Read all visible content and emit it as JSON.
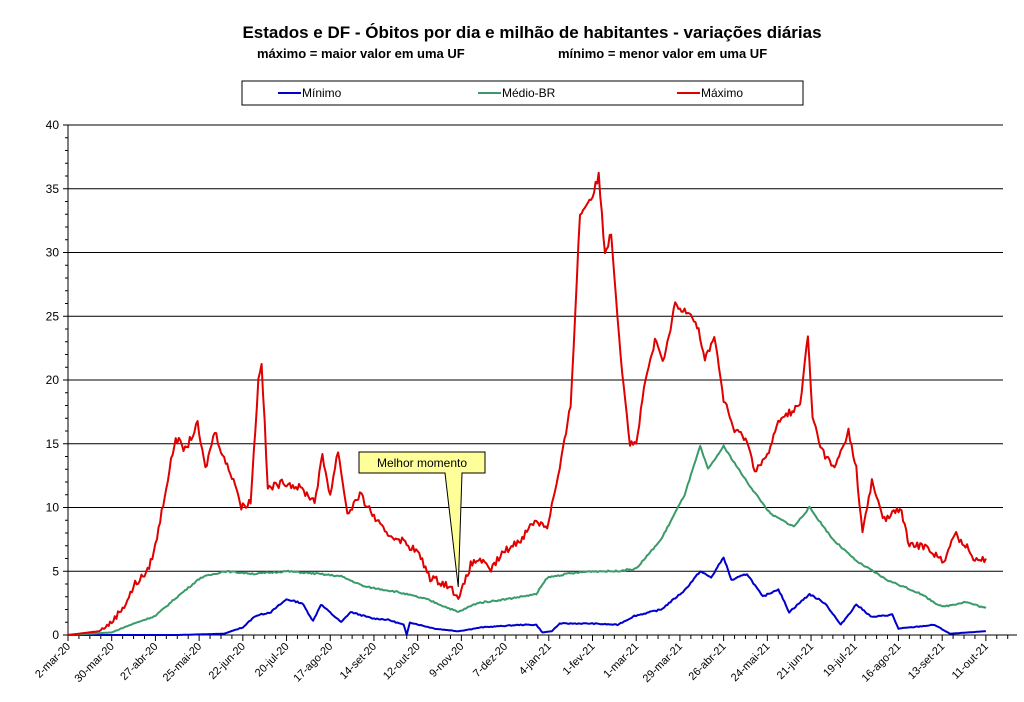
{
  "chart_data": {
    "type": "line",
    "title": "Estados e DF - Óbitos por dia e milhão de habitantes - variações diárias",
    "subtitle_left": "máximo = maior valor em uma UF",
    "subtitle_right": "mínimo = menor valor em uma UF",
    "x_unit": "days since 2-mar-20",
    "ylim": [
      0,
      40
    ],
    "yticks": [
      0,
      5,
      10,
      15,
      20,
      25,
      30,
      35,
      40
    ],
    "xtick_labels": [
      "2-mar-20",
      "30-mar-20",
      "27-abr-20",
      "25-mai-20",
      "22-jun-20",
      "20-jul-20",
      "17-ago-20",
      "14-set-20",
      "12-out-20",
      "9-nov-20",
      "7-dez-20",
      "4-jan-21",
      "1-fev-21",
      "1-mar-21",
      "29-mar-21",
      "26-abr-21",
      "24-mai-21",
      "21-jun-21",
      "19-jul-21",
      "16-ago-21",
      "13-set-21",
      "11-out-21"
    ],
    "xtick_step_days": 28,
    "grid": true,
    "legend_placement": "top",
    "annotation": {
      "text": "Melhor momento",
      "day": 250,
      "value": 4
    },
    "series": [
      {
        "name": "Mínimo",
        "color": "#0000cc",
        "points": [
          [
            0,
            0
          ],
          [
            70,
            0
          ],
          [
            100,
            0.1
          ],
          [
            112,
            0.6
          ],
          [
            120,
            1.5
          ],
          [
            130,
            1.8
          ],
          [
            140,
            2.8
          ],
          [
            150,
            2.5
          ],
          [
            157,
            1.1
          ],
          [
            162,
            2.4
          ],
          [
            175,
            1.0
          ],
          [
            181,
            1.8
          ],
          [
            195,
            1.3
          ],
          [
            205,
            1.2
          ],
          [
            215,
            0.8
          ],
          [
            217,
            0
          ],
          [
            219,
            1.0
          ],
          [
            225,
            0.8
          ],
          [
            235,
            0.5
          ],
          [
            250,
            0.3
          ],
          [
            265,
            0.6
          ],
          [
            290,
            0.8
          ],
          [
            300,
            0.8
          ],
          [
            304,
            0.2
          ],
          [
            310,
            0.3
          ],
          [
            315,
            0.9
          ],
          [
            335,
            0.9
          ],
          [
            352,
            0.8
          ],
          [
            363,
            1.5
          ],
          [
            380,
            2.0
          ],
          [
            395,
            3.5
          ],
          [
            405,
            5.0
          ],
          [
            412,
            4.5
          ],
          [
            420,
            6.1
          ],
          [
            425,
            4.3
          ],
          [
            435,
            4.8
          ],
          [
            445,
            3.0
          ],
          [
            455,
            3.6
          ],
          [
            462,
            1.8
          ],
          [
            475,
            3.2
          ],
          [
            485,
            2.5
          ],
          [
            495,
            0.8
          ],
          [
            505,
            2.4
          ],
          [
            515,
            1.4
          ],
          [
            528,
            1.6
          ],
          [
            532,
            0.5
          ],
          [
            548,
            0.7
          ],
          [
            555,
            0.8
          ],
          [
            565,
            0.1
          ],
          [
            588,
            0.3
          ]
        ]
      },
      {
        "name": "Médio-BR",
        "color": "#3a9a6a",
        "points": [
          [
            0,
            0
          ],
          [
            28,
            0.2
          ],
          [
            40,
            0.8
          ],
          [
            56,
            1.5
          ],
          [
            70,
            3.0
          ],
          [
            85,
            4.5
          ],
          [
            100,
            5.0
          ],
          [
            120,
            4.8
          ],
          [
            140,
            5.0
          ],
          [
            160,
            4.8
          ],
          [
            175,
            4.6
          ],
          [
            190,
            3.8
          ],
          [
            210,
            3.4
          ],
          [
            230,
            2.8
          ],
          [
            250,
            1.8
          ],
          [
            262,
            2.5
          ],
          [
            280,
            2.8
          ],
          [
            300,
            3.2
          ],
          [
            307,
            4.5
          ],
          [
            320,
            4.8
          ],
          [
            335,
            5.0
          ],
          [
            350,
            5.0
          ],
          [
            364,
            5.2
          ],
          [
            380,
            7.5
          ],
          [
            395,
            11.0
          ],
          [
            405,
            14.8
          ],
          [
            410,
            13.0
          ],
          [
            420,
            14.8
          ],
          [
            435,
            12.0
          ],
          [
            450,
            9.5
          ],
          [
            465,
            8.5
          ],
          [
            475,
            10.0
          ],
          [
            490,
            7.5
          ],
          [
            505,
            5.8
          ],
          [
            525,
            4.3
          ],
          [
            545,
            3.3
          ],
          [
            560,
            2.2
          ],
          [
            575,
            2.6
          ],
          [
            588,
            2.1
          ]
        ]
      },
      {
        "name": "Máximo",
        "color": "#e00000",
        "points": [
          [
            0,
            0
          ],
          [
            20,
            0.3
          ],
          [
            28,
            1
          ],
          [
            37,
            2.5
          ],
          [
            43,
            4
          ],
          [
            51,
            5
          ],
          [
            56,
            7
          ],
          [
            62,
            11
          ],
          [
            69,
            15.5
          ],
          [
            75,
            14.5
          ],
          [
            83,
            16.5
          ],
          [
            88,
            13
          ],
          [
            94,
            16
          ],
          [
            101,
            13.5
          ],
          [
            107,
            12
          ],
          [
            111,
            10
          ],
          [
            117,
            10.5
          ],
          [
            122,
            20
          ],
          [
            124,
            21.5
          ],
          [
            128,
            11.5
          ],
          [
            139,
            12
          ],
          [
            149,
            11.5
          ],
          [
            158,
            10.5
          ],
          [
            163,
            14
          ],
          [
            168,
            11
          ],
          [
            173,
            14.5
          ],
          [
            179,
            9.5
          ],
          [
            187,
            11
          ],
          [
            195,
            9.5
          ],
          [
            203,
            8
          ],
          [
            213,
            7.5
          ],
          [
            224,
            6.5
          ],
          [
            232,
            4.5
          ],
          [
            242,
            4
          ],
          [
            251,
            3
          ],
          [
            258,
            5.5
          ],
          [
            264,
            6
          ],
          [
            270,
            5
          ],
          [
            279,
            6.5
          ],
          [
            290,
            7.5
          ],
          [
            299,
            9
          ],
          [
            307,
            8.5
          ],
          [
            315,
            13
          ],
          [
            322,
            18
          ],
          [
            328,
            33
          ],
          [
            336,
            34.5
          ],
          [
            340,
            36
          ],
          [
            344,
            30
          ],
          [
            348,
            31.5
          ],
          [
            354,
            22
          ],
          [
            360,
            15
          ],
          [
            364,
            15
          ],
          [
            370,
            20
          ],
          [
            376,
            23
          ],
          [
            382,
            21.5
          ],
          [
            389,
            26
          ],
          [
            392,
            25.5
          ],
          [
            398,
            25.5
          ],
          [
            404,
            24
          ],
          [
            408,
            21.5
          ],
          [
            414,
            23.5
          ],
          [
            420,
            18.5
          ],
          [
            427,
            16
          ],
          [
            434,
            15.5
          ],
          [
            440,
            13
          ],
          [
            448,
            14
          ],
          [
            456,
            17
          ],
          [
            463,
            17.5
          ],
          [
            469,
            18
          ],
          [
            474,
            23.5
          ],
          [
            477,
            17
          ],
          [
            483,
            14.5
          ],
          [
            491,
            13
          ],
          [
            500,
            16
          ],
          [
            505,
            13
          ],
          [
            509,
            8
          ],
          [
            515,
            12
          ],
          [
            523,
            9
          ],
          [
            533,
            10
          ],
          [
            539,
            7
          ],
          [
            549,
            7
          ],
          [
            559,
            6
          ],
          [
            561,
            5.5
          ],
          [
            568,
            8
          ],
          [
            575,
            7
          ],
          [
            581,
            6
          ],
          [
            588,
            6
          ]
        ]
      }
    ]
  }
}
